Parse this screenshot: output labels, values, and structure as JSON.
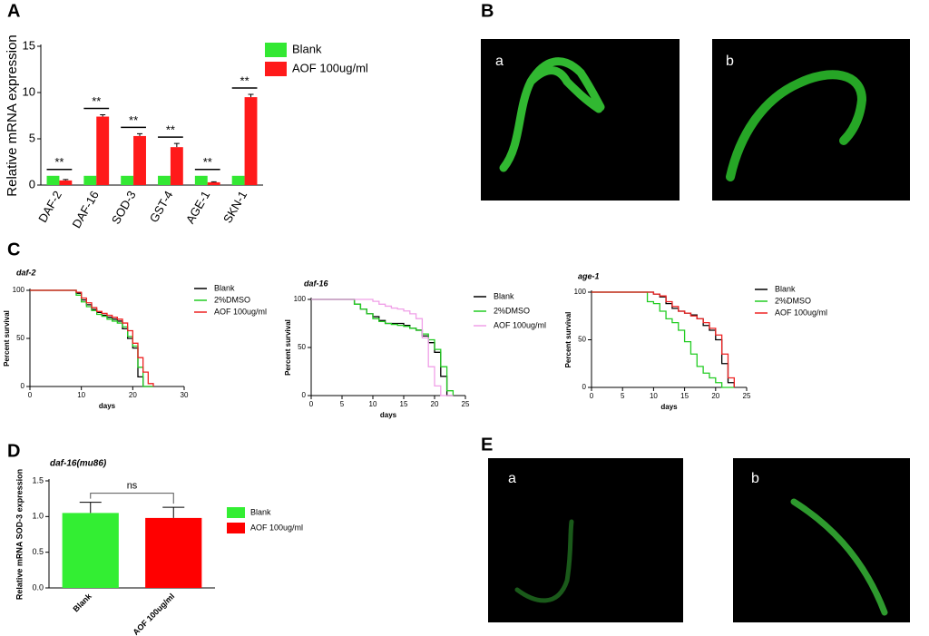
{
  "panel_labels": [
    "A",
    "B",
    "C",
    "D",
    "E"
  ],
  "micrographs": [
    {
      "labels": [
        "a",
        "b"
      ]
    },
    {
      "labels": [
        "a",
        "b"
      ]
    }
  ],
  "chart_data": [
    {
      "type": "bar",
      "ylabel": "Relative mRNA expression",
      "categories": [
        "DAF-2",
        "DAF-16",
        "SOD-3",
        "GST-4",
        "AGE-1",
        "SKN-1"
      ],
      "series": [
        {
          "name": "Blank",
          "color": "#33e833",
          "values": [
            1,
            1,
            1,
            1,
            1,
            1
          ]
        },
        {
          "name": "AOF 100ug/ml",
          "color": "#ff1a1a",
          "values": [
            0.5,
            7.4,
            5.3,
            4.1,
            0.3,
            9.5
          ],
          "errors": [
            0.1,
            0.2,
            0.25,
            0.4,
            0.05,
            0.3
          ]
        }
      ],
      "significance": [
        "**",
        "**",
        "**",
        "**",
        "**",
        "**"
      ],
      "ylim": [
        0,
        15
      ],
      "yticks": [
        0,
        5,
        10,
        15
      ]
    },
    {
      "type": "line",
      "step": true,
      "title": "daf-2",
      "xlabel": "days",
      "ylabel": "Percent survival",
      "x": [
        0,
        8,
        9,
        10,
        11,
        12,
        13,
        14,
        15,
        16,
        17,
        18,
        19,
        20,
        21,
        22,
        23,
        24
      ],
      "series": [
        {
          "name": "Blank",
          "color": "#000000",
          "values": [
            100,
            100,
            97,
            90,
            85,
            80,
            77,
            74,
            72,
            70,
            68,
            60,
            50,
            40,
            10,
            0,
            0,
            0
          ]
        },
        {
          "name": "2%DMSO",
          "color": "#22cc22",
          "values": [
            100,
            100,
            95,
            88,
            83,
            79,
            75,
            73,
            70,
            68,
            66,
            62,
            52,
            42,
            20,
            0,
            0,
            0
          ]
        },
        {
          "name": "AOF 100ug/ml",
          "color": "#ee2222",
          "values": [
            100,
            100,
            98,
            92,
            87,
            82,
            78,
            76,
            74,
            72,
            70,
            66,
            58,
            45,
            30,
            15,
            3,
            0
          ]
        }
      ],
      "xlim": [
        0,
        30
      ],
      "xticks": [
        0,
        10,
        20,
        30
      ],
      "ylim": [
        0,
        100
      ],
      "yticks": [
        0,
        50,
        100
      ]
    },
    {
      "type": "line",
      "step": true,
      "title": "daf-16",
      "xlabel": "days",
      "ylabel": "Percent survival",
      "x": [
        0,
        6,
        7,
        8,
        9,
        10,
        11,
        12,
        13,
        14,
        15,
        16,
        17,
        18,
        19,
        20,
        21,
        22,
        23
      ],
      "series": [
        {
          "name": "Blank",
          "color": "#000000",
          "values": [
            100,
            100,
            95,
            90,
            85,
            82,
            78,
            75,
            75,
            75,
            73,
            70,
            68,
            62,
            55,
            45,
            20,
            0,
            0
          ]
        },
        {
          "name": "2%DMSO",
          "color": "#22cc22",
          "values": [
            100,
            100,
            95,
            90,
            85,
            80,
            77,
            75,
            74,
            73,
            72,
            70,
            68,
            64,
            58,
            48,
            30,
            5,
            0
          ]
        },
        {
          "name": "AOF 100ug/ml",
          "color": "#f0a0e8",
          "values": [
            100,
            100,
            100,
            100,
            100,
            98,
            95,
            93,
            91,
            90,
            88,
            85,
            80,
            60,
            30,
            10,
            0,
            0,
            0
          ]
        }
      ],
      "xlim": [
        0,
        25
      ],
      "xticks": [
        0,
        5,
        10,
        15,
        20,
        25
      ],
      "ylim": [
        0,
        100
      ],
      "yticks": [
        0,
        50,
        100
      ]
    },
    {
      "type": "line",
      "step": true,
      "title": "age-1",
      "xlabel": "days",
      "ylabel": "Percent survival",
      "x": [
        0,
        9,
        10,
        11,
        12,
        13,
        14,
        15,
        16,
        17,
        18,
        19,
        20,
        21,
        22,
        23
      ],
      "series": [
        {
          "name": "Blank",
          "color": "#000000",
          "values": [
            100,
            100,
            98,
            95,
            88,
            83,
            80,
            78,
            76,
            72,
            65,
            60,
            50,
            25,
            5,
            0
          ]
        },
        {
          "name": "2%DMSO",
          "color": "#22cc22",
          "values": [
            100,
            90,
            88,
            80,
            72,
            68,
            60,
            48,
            35,
            22,
            15,
            10,
            5,
            0,
            0,
            0
          ]
        },
        {
          "name": "AOF 100ug/ml",
          "color": "#ee2222",
          "values": [
            100,
            100,
            98,
            96,
            90,
            85,
            80,
            78,
            75,
            72,
            68,
            62,
            55,
            35,
            10,
            0
          ]
        }
      ],
      "xlim": [
        0,
        25
      ],
      "xticks": [
        0,
        5,
        10,
        15,
        20,
        25
      ],
      "ylim": [
        0,
        100
      ],
      "yticks": [
        0,
        50,
        100
      ]
    },
    {
      "type": "bar",
      "title": "daf-16(mu86)",
      "ylabel": "Relative mRNA SOD-3 expression",
      "categories": [
        "Blank",
        "AOF 100ug/ml"
      ],
      "values": [
        1.05,
        0.98
      ],
      "errors": [
        0.15,
        0.15
      ],
      "colors": [
        "#33ee33",
        "#ff0000"
      ],
      "annotation": "ns",
      "ylim": [
        0,
        1.5
      ],
      "yticks": [
        {
          "value": 0,
          "label": "0.0"
        },
        0.5,
        {
          "value": 1,
          "label": "1.0"
        },
        1.5
      ]
    }
  ]
}
